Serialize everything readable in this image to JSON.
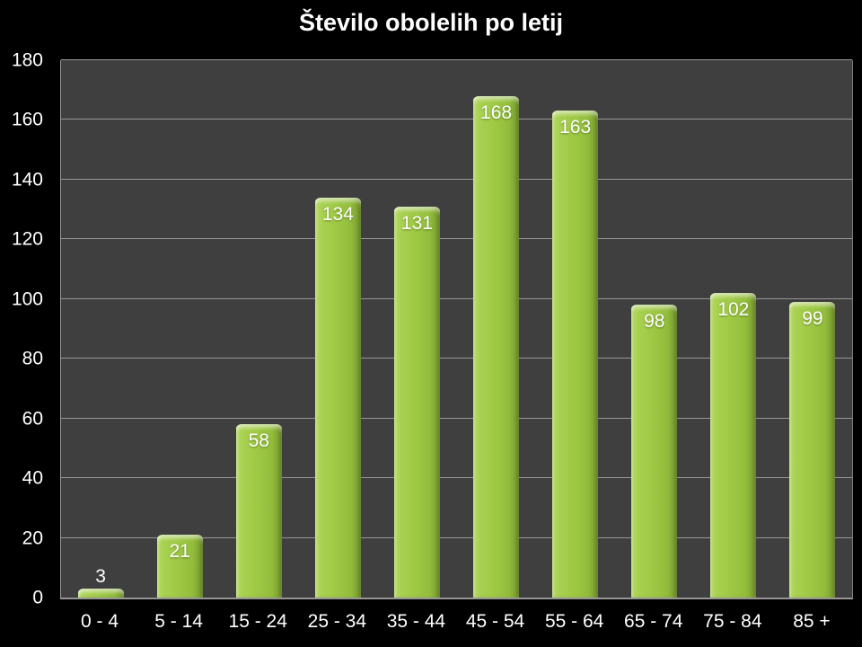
{
  "chart_data": {
    "type": "bar",
    "title": "Število obolelih po letij",
    "categories": [
      "0 - 4",
      "5 - 14",
      "15 - 24",
      "25 - 34",
      "35 - 44",
      "45 - 54",
      "55 - 64",
      "65 - 74",
      "75 - 84",
      "85 +"
    ],
    "values": [
      3,
      21,
      58,
      134,
      131,
      168,
      163,
      98,
      102,
      99
    ],
    "xlabel": "",
    "ylabel": "",
    "ylim": [
      0,
      180
    ],
    "ytick_step": 20,
    "grid": true,
    "legend_position": "none",
    "colors": {
      "background": "#000000",
      "plot_background": "#3f3f3f",
      "gridline": "#969696",
      "bar_main": "#9fc944",
      "bar_highlight": "#c9e487",
      "bar_shadow": "#73942c",
      "title_text": "#ffffff",
      "axis_text": "#ffffff",
      "value_label_text": "#ffffff"
    }
  }
}
